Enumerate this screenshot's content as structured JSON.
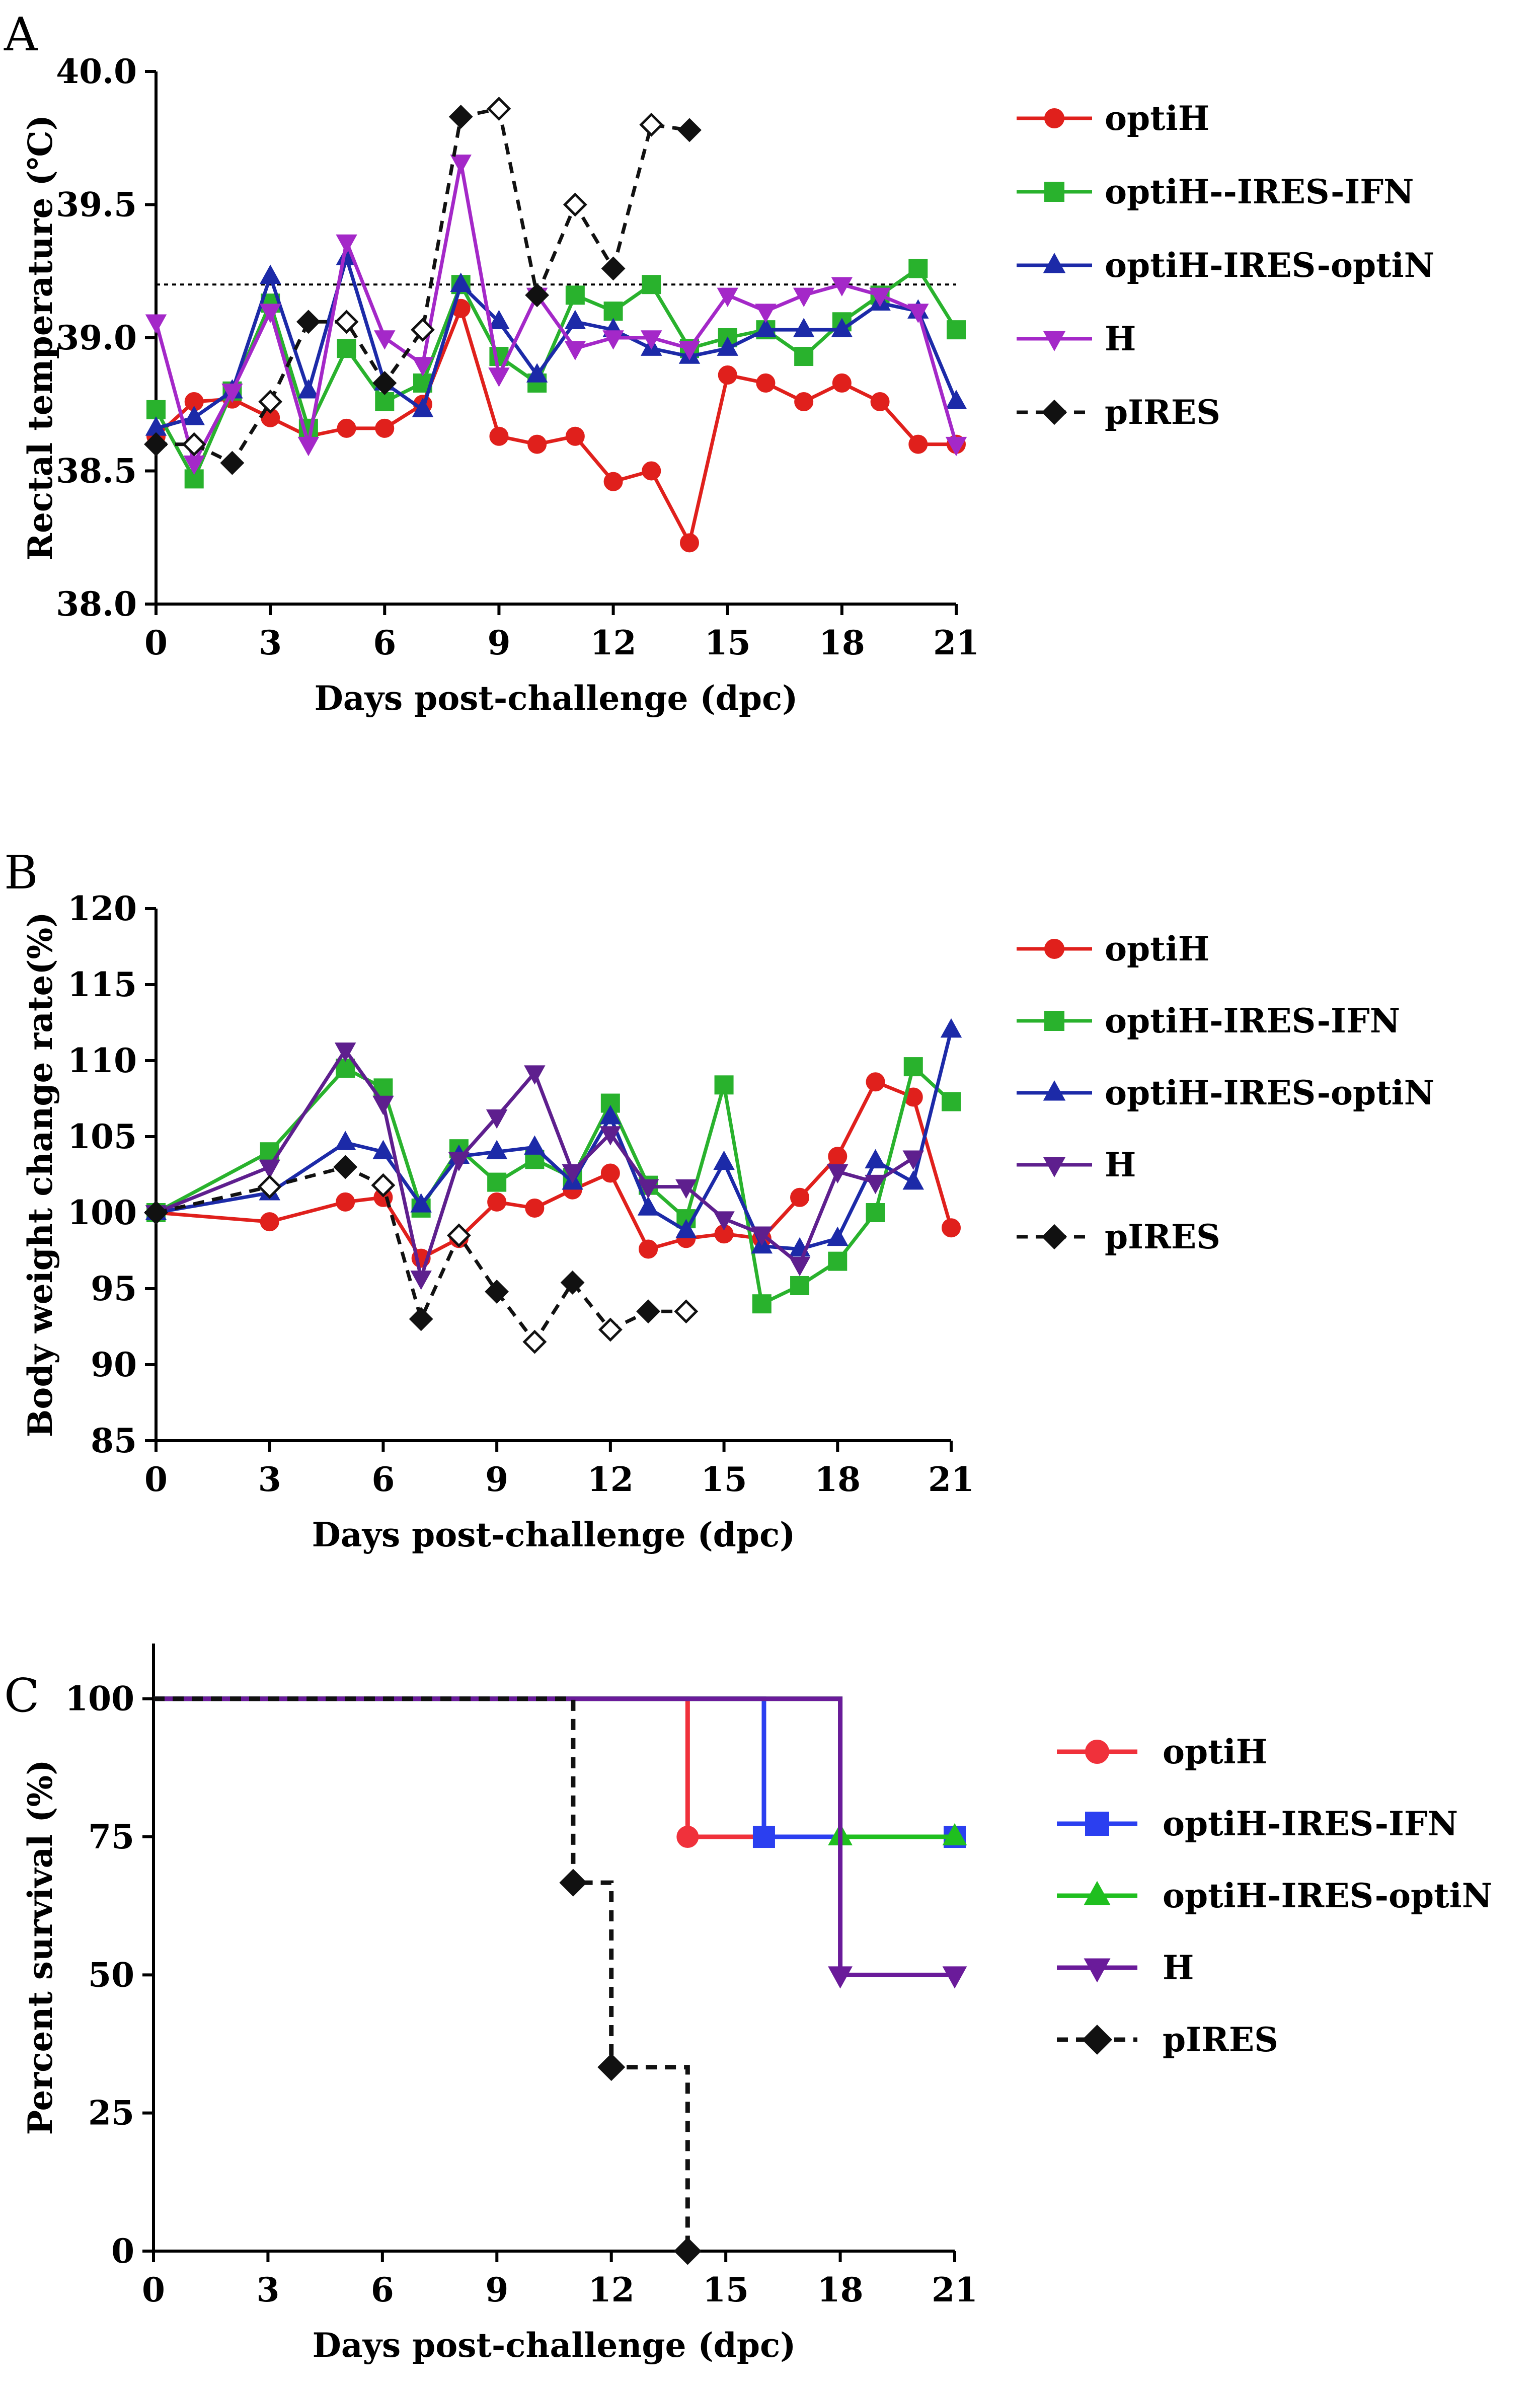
{
  "chart_data": [
    {
      "panel": "A",
      "type": "line",
      "xlabel": "Days post-challenge\t(dpc)",
      "ylabel": "Rectal temperature (℃)",
      "xlim": [
        0,
        21
      ],
      "ylim": [
        38.0,
        40.0
      ],
      "xticks": [
        "0",
        "3",
        "6",
        "9",
        "12",
        "15",
        "18",
        "21"
      ],
      "yticks": [
        "38.0",
        "38.5",
        "39.0",
        "39.5",
        "40.0"
      ],
      "reference_line": 39.2,
      "series": [
        {
          "name": "optiH",
          "color": "#e0201c",
          "marker": "circle",
          "dashed": false,
          "x": [
            0,
            1,
            2,
            3,
            4,
            5,
            6,
            7,
            8,
            9,
            10,
            11,
            12,
            13,
            14,
            15,
            16,
            17,
            18,
            19,
            20,
            21
          ],
          "y": [
            38.63,
            38.76,
            38.77,
            38.7,
            38.63,
            38.66,
            38.66,
            38.75,
            39.11,
            38.63,
            38.6,
            38.63,
            38.46,
            38.5,
            38.23,
            38.86,
            38.83,
            38.76,
            38.83,
            38.76,
            38.6,
            38.6
          ]
        },
        {
          "name": "optiH--IRES-IFN",
          "color": "#29b22d",
          "marker": "square",
          "dashed": false,
          "x": [
            0,
            1,
            2,
            3,
            4,
            5,
            6,
            7,
            8,
            9,
            10,
            11,
            12,
            13,
            14,
            15,
            16,
            17,
            18,
            19,
            20,
            21
          ],
          "y": [
            38.73,
            38.47,
            38.8,
            39.13,
            38.66,
            38.96,
            38.76,
            38.83,
            39.2,
            38.93,
            38.83,
            39.16,
            39.1,
            39.2,
            38.96,
            39.0,
            39.03,
            38.93,
            39.06,
            39.16,
            39.26,
            39.03
          ]
        },
        {
          "name": "optiH-IRES-optiN",
          "color": "#1c2aa8",
          "marker": "triangle-up",
          "dashed": false,
          "x": [
            0,
            1,
            2,
            3,
            4,
            5,
            6,
            7,
            8,
            9,
            10,
            11,
            12,
            13,
            14,
            15,
            16,
            17,
            18,
            19,
            20,
            21
          ],
          "y": [
            38.66,
            38.7,
            38.8,
            39.23,
            38.8,
            39.3,
            38.83,
            38.73,
            39.2,
            39.06,
            38.86,
            39.06,
            39.03,
            38.96,
            38.93,
            38.96,
            39.03,
            39.03,
            39.03,
            39.13,
            39.1,
            38.76
          ]
        },
        {
          "name": "H",
          "color": "#a428c8",
          "marker": "triangle-down",
          "dashed": false,
          "x": [
            0,
            1,
            2,
            3,
            4,
            5,
            6,
            7,
            8,
            9,
            10,
            11,
            12,
            13,
            14,
            15,
            16,
            17,
            18,
            19,
            20,
            21
          ],
          "y": [
            39.06,
            38.53,
            38.8,
            39.1,
            38.6,
            39.36,
            39.0,
            38.9,
            39.66,
            38.86,
            39.16,
            38.96,
            39.0,
            39.0,
            38.96,
            39.16,
            39.1,
            39.16,
            39.2,
            39.16,
            39.1,
            38.6
          ]
        },
        {
          "name": "pIRES",
          "color": "#111111",
          "marker": "diamond",
          "dashed": true,
          "x": [
            0,
            1,
            2,
            3,
            4,
            5,
            6,
            7,
            8,
            9,
            10,
            11,
            12,
            13,
            14
          ],
          "y": [
            38.6,
            38.6,
            38.53,
            38.76,
            39.06,
            39.06,
            38.83,
            39.03,
            39.83,
            39.86,
            39.16,
            39.5,
            39.26,
            39.8,
            39.78
          ]
        }
      ]
    },
    {
      "panel": "B",
      "type": "line",
      "xlabel": "Days post-challenge\t(dpc)",
      "ylabel": "Body weight change rate(%)",
      "xlim": [
        0,
        21
      ],
      "ylim": [
        85,
        120
      ],
      "xticks": [
        "0",
        "3",
        "6",
        "9",
        "12",
        "15",
        "18",
        "21"
      ],
      "yticks": [
        "85",
        "90",
        "95",
        "100",
        "105",
        "110",
        "115",
        "120"
      ],
      "series": [
        {
          "name": "optiH",
          "color": "#e0201c",
          "marker": "circle",
          "dashed": false,
          "x": [
            0,
            3,
            5,
            6,
            7,
            8,
            9,
            10,
            11,
            12,
            13,
            14,
            15,
            16,
            17,
            18,
            19,
            20,
            21
          ],
          "y": [
            100,
            99.4,
            100.7,
            101.0,
            97.0,
            98.3,
            100.7,
            100.3,
            101.5,
            102.6,
            97.6,
            98.3,
            98.6,
            98.3,
            101.0,
            103.7,
            108.6,
            107.6,
            99.0
          ]
        },
        {
          "name": "optiH-IRES-IFN",
          "color": "#29b22d",
          "marker": "square",
          "dashed": false,
          "x": [
            0,
            3,
            5,
            6,
            7,
            8,
            9,
            10,
            11,
            12,
            13,
            14,
            15,
            16,
            17,
            18,
            19,
            20,
            21
          ],
          "y": [
            100,
            104.0,
            109.5,
            108.2,
            100.3,
            104.2,
            102.0,
            103.5,
            102.3,
            107.2,
            101.8,
            99.6,
            108.4,
            94.0,
            95.2,
            96.8,
            100.0,
            109.6,
            107.3
          ]
        },
        {
          "name": "optiH-IRES-optiN",
          "color": "#1c2aa8",
          "marker": "triangle-up",
          "dashed": false,
          "x": [
            0,
            3,
            5,
            6,
            7,
            8,
            9,
            10,
            11,
            12,
            13,
            14,
            15,
            16,
            17,
            18,
            19,
            20,
            21
          ],
          "y": [
            100,
            101.3,
            104.6,
            104.0,
            100.5,
            103.7,
            104.0,
            104.3,
            102.0,
            106.3,
            100.3,
            98.8,
            103.3,
            97.8,
            97.6,
            98.3,
            103.4,
            102.0,
            112.0
          ]
        },
        {
          "name": "H",
          "color": "#5e1f8e",
          "marker": "triangle-down",
          "dashed": false,
          "x": [
            0,
            3,
            5,
            6,
            7,
            8,
            9,
            10,
            11,
            12,
            13,
            14,
            15,
            16,
            17,
            18,
            19,
            20
          ],
          "y": [
            100,
            103.0,
            110.7,
            107.2,
            95.7,
            103.5,
            106.3,
            109.2,
            102.7,
            105.2,
            101.7,
            101.7,
            99.6,
            98.6,
            96.6,
            102.7,
            102.0,
            103.6
          ]
        },
        {
          "name": "pIRES",
          "color": "#111111",
          "marker": "diamond",
          "dashed": true,
          "x": [
            0,
            3,
            5,
            6,
            7,
            8,
            9,
            10,
            11,
            12,
            13,
            14
          ],
          "y": [
            100,
            101.7,
            103.0,
            101.8,
            93.0,
            98.5,
            94.8,
            91.5,
            95.4,
            92.3,
            93.5,
            93.5
          ]
        }
      ]
    },
    {
      "panel": "C",
      "type": "line",
      "subtype": "survival-step",
      "xlabel": "Days post-challenge\t(dpc)",
      "ylabel": "Percent survival (%)",
      "xlim": [
        0,
        21
      ],
      "ylim": [
        0,
        110
      ],
      "xticks": [
        "0",
        "3",
        "6",
        "9",
        "12",
        "15",
        "18",
        "21"
      ],
      "yticks": [
        "0",
        "25",
        "50",
        "75",
        "100"
      ],
      "series": [
        {
          "name": "optiH",
          "color": "#f0313b",
          "marker": "circle",
          "dashed": false,
          "steps": [
            [
              0,
              100
            ],
            [
              14,
              75
            ],
            [
              21,
              75
            ]
          ]
        },
        {
          "name": "optiH-IRES-IFN",
          "color": "#2b3ff0",
          "marker": "square",
          "dashed": false,
          "steps": [
            [
              0,
              100
            ],
            [
              16,
              75
            ],
            [
              21,
              75
            ]
          ]
        },
        {
          "name": "optiH-IRES-optiN",
          "color": "#1fbf1f",
          "marker": "triangle-up",
          "dashed": false,
          "steps": [
            [
              0,
              100
            ],
            [
              18,
              75
            ],
            [
              21,
              75
            ]
          ]
        },
        {
          "name": "H",
          "color": "#6a1b9a",
          "marker": "triangle-down",
          "dashed": false,
          "steps": [
            [
              0,
              100
            ],
            [
              18,
              50
            ],
            [
              21,
              50
            ]
          ]
        },
        {
          "name": "pIRES",
          "color": "#111111",
          "marker": "diamond",
          "dashed": true,
          "steps": [
            [
              0,
              100
            ],
            [
              11,
              66.7
            ],
            [
              12,
              33.3
            ],
            [
              14,
              0
            ]
          ]
        }
      ]
    }
  ]
}
